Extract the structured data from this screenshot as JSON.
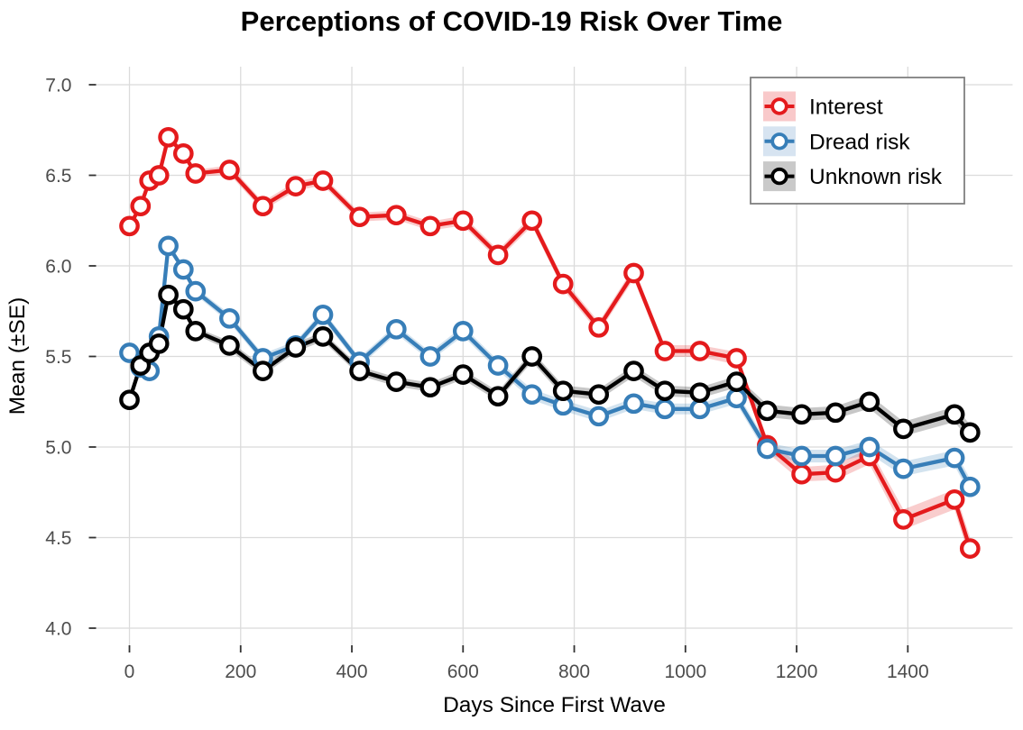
{
  "chart_data": {
    "type": "line",
    "title": "Perceptions of COVID-19 Risk Over Time",
    "xlabel": "Days Since First Wave",
    "ylabel": "Mean (±SE)",
    "grid": true,
    "legend_position": "top-right-inset",
    "xlim": [
      -76,
      1589
    ],
    "ylim": [
      3.9,
      7.1
    ],
    "x_ticks": [
      {
        "v": 0,
        "label": "0"
      },
      {
        "v": 200,
        "label": "200"
      },
      {
        "v": 400,
        "label": "400"
      },
      {
        "v": 600,
        "label": "600"
      },
      {
        "v": 800,
        "label": "800"
      },
      {
        "v": 1000,
        "label": "1000"
      },
      {
        "v": 1200,
        "label": "1200"
      },
      {
        "v": 1400,
        "label": "1400"
      }
    ],
    "y_ticks": [
      {
        "v": 4.0,
        "label": "4.0"
      },
      {
        "v": 4.5,
        "label": "4.5"
      },
      {
        "v": 5.0,
        "label": "5.0"
      },
      {
        "v": 5.5,
        "label": "5.5"
      },
      {
        "v": 6.0,
        "label": "6.0"
      },
      {
        "v": 6.5,
        "label": "6.5"
      },
      {
        "v": 7.0,
        "label": "7.0"
      }
    ],
    "x_days": [
      0,
      20,
      36,
      53,
      70,
      97,
      119,
      180,
      240,
      299,
      348,
      414,
      480,
      541,
      600,
      663,
      724,
      780,
      844,
      907,
      963,
      1026,
      1092,
      1147,
      1209,
      1270,
      1331,
      1392,
      1484,
      1512
    ],
    "series": [
      {
        "name": "Interest",
        "color": "#E41A1C",
        "fill": "#F9C9CA",
        "values": [
          6.22,
          6.33,
          6.47,
          6.5,
          6.71,
          6.62,
          6.51,
          6.53,
          6.33,
          6.44,
          6.47,
          6.27,
          6.28,
          6.22,
          6.25,
          6.06,
          6.25,
          5.9,
          5.66,
          5.96,
          5.53,
          5.53,
          5.49,
          5.01,
          4.85,
          4.86,
          4.95,
          4.6,
          4.71,
          4.44
        ],
        "se": [
          0.02,
          0.02,
          0.02,
          0.02,
          0.02,
          0.02,
          0.02,
          0.025,
          0.025,
          0.025,
          0.025,
          0.025,
          0.025,
          0.025,
          0.027,
          0.027,
          0.03,
          0.03,
          0.03,
          0.032,
          0.032,
          0.032,
          0.035,
          0.04,
          0.04,
          0.042,
          0.045,
          0.055,
          0.055,
          0.06
        ]
      },
      {
        "name": "Dread risk",
        "color": "#377EB8",
        "fill": "#D7E4F1",
        "values": [
          5.52,
          5.44,
          5.42,
          5.61,
          6.11,
          5.98,
          5.86,
          5.71,
          5.49,
          5.56,
          5.73,
          5.47,
          5.65,
          5.5,
          5.64,
          5.45,
          5.29,
          5.23,
          5.17,
          5.24,
          5.21,
          5.21,
          5.27,
          4.99,
          4.95,
          4.95,
          5.0,
          4.88,
          4.94,
          4.78
        ],
        "se": [
          0.02,
          0.02,
          0.02,
          0.02,
          0.02,
          0.02,
          0.02,
          0.025,
          0.025,
          0.025,
          0.025,
          0.025,
          0.025,
          0.025,
          0.027,
          0.027,
          0.03,
          0.03,
          0.03,
          0.03,
          0.03,
          0.03,
          0.032,
          0.035,
          0.035,
          0.035,
          0.038,
          0.04,
          0.042,
          0.045
        ]
      },
      {
        "name": "Unknown risk",
        "color": "#000000",
        "fill": "#C9C9C9",
        "values": [
          5.26,
          5.45,
          5.52,
          5.57,
          5.84,
          5.76,
          5.64,
          5.56,
          5.42,
          5.55,
          5.61,
          5.42,
          5.36,
          5.33,
          5.4,
          5.28,
          5.5,
          5.31,
          5.29,
          5.42,
          5.31,
          5.3,
          5.36,
          5.2,
          5.18,
          5.19,
          5.25,
          5.1,
          5.18,
          5.08
        ],
        "se": [
          0.02,
          0.02,
          0.02,
          0.02,
          0.02,
          0.02,
          0.02,
          0.025,
          0.025,
          0.025,
          0.025,
          0.025,
          0.025,
          0.025,
          0.027,
          0.027,
          0.03,
          0.03,
          0.03,
          0.03,
          0.03,
          0.03,
          0.032,
          0.035,
          0.035,
          0.035,
          0.038,
          0.04,
          0.042,
          0.045
        ]
      }
    ],
    "style": {
      "gridline_color": "#DBDBDB",
      "tick_color": "#333333",
      "tick_label_color": "#4D4D4D",
      "legend_border_color": "#808080",
      "ribbon_opacity": 0.22
    }
  }
}
